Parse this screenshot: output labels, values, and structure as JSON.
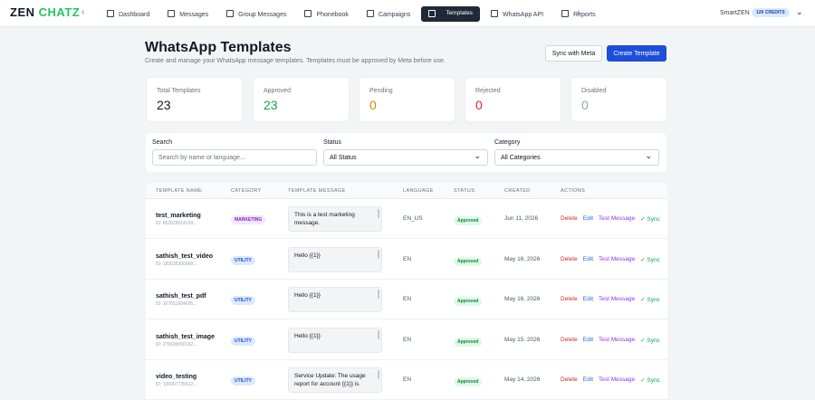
{
  "brand": {
    "logo_left": "ZEN",
    "logo_right": "CHATZ"
  },
  "nav": [
    "Dashboard",
    "Messages",
    "Group Messages",
    "Phonebook",
    "Campaigns",
    "Templates",
    "WhatsApp API",
    "Reports"
  ],
  "nav_active": 5,
  "user": {
    "name": "SmartZEN",
    "credits": "120 CREDITS"
  },
  "header": {
    "title": "WhatsApp Templates",
    "subtitle": "Create and manage your WhatsApp message templates. Templates must be approved by Meta before use.",
    "sync_button": "Sync with Meta",
    "create_button": "Create Template"
  },
  "stats": [
    {
      "label": "Total Templates",
      "value": 23
    },
    {
      "label": "Approved",
      "value": 23
    },
    {
      "label": "Pending",
      "value": 0
    },
    {
      "label": "Rejected",
      "value": 0
    },
    {
      "label": "Disabled",
      "value": 0
    }
  ],
  "filters": {
    "search_label": "Search",
    "search_placeholder": "Search by name or language...",
    "status_label": "Status",
    "status_value": "All Status",
    "category_label": "Category",
    "category_value": "All Categories"
  },
  "table": {
    "columns": [
      "TEMPLATE NAME",
      "CATEGORY",
      "TEMPLATE MESSAGE",
      "LANGUAGE",
      "STATUS",
      "CREATED",
      "ACTIONS"
    ],
    "actions": [
      "Delete",
      "Edit",
      "Test Message",
      "✓ Sync"
    ],
    "rows": [
      [
        "test_marketing",
        "ID: 852528014199...",
        "MARKETING",
        "This is a test marketing message.",
        "EN_US",
        "Approved",
        "Jun 11, 2026"
      ],
      [
        "sathish_test_video",
        "ID: 183635300068...",
        "UTILITY",
        "Hello {{1}}",
        "EN",
        "Approved",
        "May 16, 2026"
      ],
      [
        "sathish_test_pdf",
        "ID: 167651684695...",
        "UTILITY",
        "Hello {{1}}",
        "EN",
        "Approved",
        "May 16, 2026"
      ],
      [
        "sathish_test_image",
        "ID: 276699650192...",
        "UTILITY",
        "Hello {{1}}",
        "EN",
        "Approved",
        "May 15, 2026"
      ],
      [
        "video_testing",
        "ID: 136907735512...",
        "UTILITY",
        "Service Update: The usage report for account {{1}} is",
        "EN",
        "Approved",
        "May 14, 2026"
      ]
    ]
  }
}
